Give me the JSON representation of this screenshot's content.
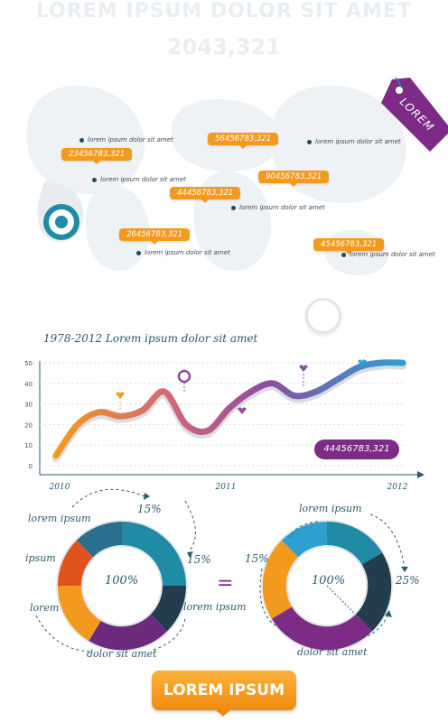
{
  "header": {
    "title": "LOREM IPSUM DOLOR SIT AMET",
    "number": "2043,321"
  },
  "hang_tag": {
    "label": "LOREM"
  },
  "map": {
    "tags": [
      "23456783,321",
      "56456783,321",
      "44456783,321",
      "90456783,321",
      "26456783,321",
      "45456783,321"
    ],
    "locations": [
      "lorem ipsum dolor sit amet",
      "lorem ipsum dolor sit amet",
      "lorem ipsum dolor sit amet",
      "lorem ipsum dolor sit amet",
      "lorem ipsum dolor sit amet",
      "lorem ipsum dolor sit amet"
    ]
  },
  "chart": {
    "title": "1978-2012 Lorem ipsum dolor sit amet",
    "value_label": "44456783,321",
    "y_ticks": [
      "0",
      "10",
      "20",
      "30",
      "40",
      "50"
    ],
    "x_labels": [
      "2010",
      "2011",
      "2012"
    ]
  },
  "chart_data": {
    "type": "line",
    "x": [
      0,
      0.5,
      1,
      1.5,
      2,
      2.5,
      3,
      3.5,
      4,
      4.5,
      5,
      5.5,
      6,
      6.5,
      7,
      7.5,
      8
    ],
    "y": [
      5,
      20,
      26,
      24,
      27,
      36,
      20,
      17,
      28,
      36,
      40,
      34,
      36,
      42,
      48,
      50,
      50
    ],
    "ylim": [
      0,
      50
    ],
    "y_ticks": [
      0,
      10,
      20,
      30,
      40,
      50
    ],
    "x_tick_labels": [
      "2010",
      "2011",
      "2012"
    ],
    "title": "1978-2012 Lorem ipsum dolor sit amet"
  },
  "ring_left": {
    "center": "100%",
    "labels": [
      "lorem ipsum",
      "15%",
      "ipsum",
      "15%",
      "lorem",
      "lorem ipsum",
      "dolor sit amet"
    ]
  },
  "ring_right": {
    "center": "100%",
    "labels": [
      "lorem ipsum",
      "15%",
      "25%",
      "dolor sit amet"
    ]
  },
  "equals": "=",
  "cta": {
    "label": "LOREM IPSUM"
  },
  "colors": {
    "orange": "#f39a1e",
    "purple": "#7d2b86",
    "teal": "#1f8ba5",
    "navy": "#233c4e"
  }
}
